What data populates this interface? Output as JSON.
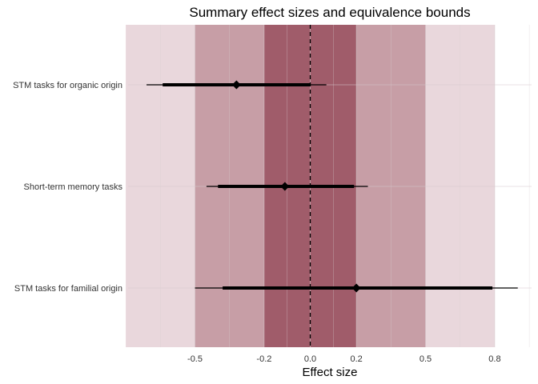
{
  "chart_data": {
    "type": "forest",
    "title": "Summary effect sizes and equivalence bounds",
    "xlabel": "Effect size",
    "ylabel": "",
    "xlim": [
      -0.79,
      0.96
    ],
    "x_ticks": [
      {
        "value": -0.5,
        "label": "-0.5"
      },
      {
        "value": -0.2,
        "label": "-0.2"
      },
      {
        "value": 0.0,
        "label": "0.0"
      },
      {
        "value": 0.2,
        "label": "0.2"
      },
      {
        "value": 0.5,
        "label": "0.5"
      },
      {
        "value": 0.8,
        "label": "0.8"
      }
    ],
    "minor_gridlines": [
      -0.65,
      -0.35,
      -0.1,
      0.1,
      0.35,
      0.65,
      0.95
    ],
    "reference_line": 0.0,
    "equivalence_bounds": [
      {
        "lower": -0.8,
        "upper": 0.8,
        "color": "#e9d7dc"
      },
      {
        "lower": -0.5,
        "upper": 0.5,
        "color": "#c79ea6"
      },
      {
        "lower": -0.2,
        "upper": 0.2,
        "color": "#a05c6a"
      }
    ],
    "categories": [
      "STM tasks for organic origin",
      "Short-term memory tasks",
      "STM tasks for familial origin"
    ],
    "estimates": [
      {
        "label": "STM tasks for organic origin",
        "estimate": -0.32,
        "ci90": [
          -0.64,
          0.0
        ],
        "ci95": [
          -0.71,
          0.07
        ]
      },
      {
        "label": "Short-term memory tasks",
        "estimate": -0.11,
        "ci90": [
          -0.4,
          0.19
        ],
        "ci95": [
          -0.45,
          0.25
        ]
      },
      {
        "label": "STM tasks for familial origin",
        "estimate": 0.2,
        "ci90": [
          -0.38,
          0.79
        ],
        "ci95": [
          -0.5,
          0.9
        ]
      }
    ],
    "grid": true,
    "legend": "none"
  }
}
